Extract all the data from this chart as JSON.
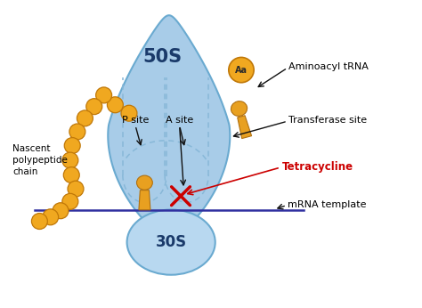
{
  "bg_color": "#ffffff",
  "color_50S": "#a8cce8",
  "color_50S_edge": "#6aaad0",
  "color_30S": "#b8d8f0",
  "color_30S_edge": "#6aaad0",
  "color_ball": "#f0a820",
  "color_ball_edge": "#c07808",
  "color_trna": "#e8a020",
  "color_trna_edge": "#b07010",
  "color_dashed": "#88b8d8",
  "color_mrna": "#3030a0",
  "color_x": "#cc0000",
  "color_arrow": "#111111",
  "color_label": "#000000",
  "color_50S_label": "#1a3a6a",
  "lbl_50S": "50S",
  "lbl_30S": "30S",
  "lbl_psite": "P site",
  "lbl_asite": "A site",
  "lbl_transferase": "Transferase site",
  "lbl_nascent": "Nascent\npolypeptide\nchain",
  "lbl_aminoacyl": "Aminoacyl tRNA",
  "lbl_tetracycline": "Tetracycline",
  "lbl_mrna": "mRNA template",
  "figsize": [
    4.74,
    3.46
  ],
  "dpi": 100,
  "xlim": [
    0,
    10
  ],
  "ylim": [
    0,
    7.3
  ]
}
